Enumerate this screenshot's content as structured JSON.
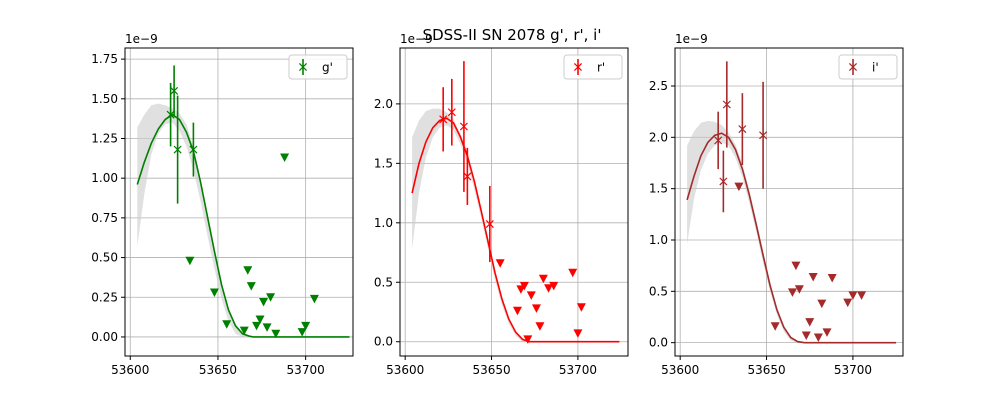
{
  "title": "SDSS-II SN 2078  g', r', i'",
  "chart_data": [
    {
      "type": "scatter",
      "band": "g'",
      "color": "#008000",
      "offset_label": "1e−9",
      "xlim": [
        53597,
        53727
      ],
      "ylim": [
        -0.12,
        1.82
      ],
      "xticks": [
        53600,
        53650,
        53700
      ],
      "xtick_labels": [
        "53600",
        "53650",
        "53700"
      ],
      "yticks": [
        0,
        0.25,
        0.5,
        0.75,
        1.0,
        1.25,
        1.5,
        1.75
      ],
      "ytick_labels": [
        "0.00",
        "0.25",
        "0.50",
        "0.75",
        "1.00",
        "1.25",
        "1.50",
        "1.75"
      ],
      "grid": true,
      "legend": {
        "label": "g'",
        "position": "top-right"
      },
      "detections": [
        {
          "x": 53623,
          "y": 1.4,
          "yerr": 0.2
        },
        {
          "x": 53625,
          "y": 1.55,
          "yerr": 0.16
        },
        {
          "x": 53627,
          "y": 1.18,
          "yerr": 0.34
        },
        {
          "x": 53636,
          "y": 1.18,
          "yerr": 0.17
        }
      ],
      "upper_limits": [
        {
          "x": 53634,
          "y": 0.48
        },
        {
          "x": 53648,
          "y": 0.28
        },
        {
          "x": 53655,
          "y": 0.08
        },
        {
          "x": 53665,
          "y": 0.04
        },
        {
          "x": 53667,
          "y": 0.42
        },
        {
          "x": 53669,
          "y": 0.32
        },
        {
          "x": 53672,
          "y": 0.07
        },
        {
          "x": 53674,
          "y": 0.11
        },
        {
          "x": 53676,
          "y": 0.22
        },
        {
          "x": 53678,
          "y": 0.06
        },
        {
          "x": 53680,
          "y": 0.25
        },
        {
          "x": 53683,
          "y": 0.02
        },
        {
          "x": 53688,
          "y": 1.13
        },
        {
          "x": 53698,
          "y": 0.03
        },
        {
          "x": 53700,
          "y": 0.07
        },
        {
          "x": 53705,
          "y": 0.24
        }
      ],
      "model": {
        "x": [
          53604,
          53608,
          53612,
          53616,
          53620,
          53624,
          53628,
          53632,
          53636,
          53640,
          53644,
          53648,
          53652,
          53656,
          53660,
          53664,
          53668,
          53670,
          53680,
          53700,
          53725
        ],
        "y": [
          0.96,
          1.1,
          1.22,
          1.31,
          1.37,
          1.4,
          1.37,
          1.29,
          1.17,
          0.98,
          0.76,
          0.54,
          0.33,
          0.17,
          0.07,
          0.02,
          0.005,
          0.0,
          0.0,
          0.0,
          0.0
        ]
      },
      "band_region": {
        "x": [
          53604,
          53608,
          53612,
          53616,
          53620,
          53624,
          53628,
          53632,
          53636,
          53640,
          53644,
          53648,
          53652,
          53656,
          53660,
          53664,
          53668
        ],
        "upper": [
          1.32,
          1.4,
          1.46,
          1.47,
          1.46,
          1.44,
          1.41,
          1.34,
          1.2,
          1.0,
          0.77,
          0.55,
          0.34,
          0.18,
          0.08,
          0.03,
          0.01
        ],
        "lower": [
          0.57,
          0.9,
          1.15,
          1.28,
          1.34,
          1.35,
          1.3,
          1.2,
          1.05,
          0.86,
          0.64,
          0.43,
          0.24,
          0.1,
          0.02,
          0.0,
          0.0
        ]
      }
    },
    {
      "type": "scatter",
      "band": "r'",
      "color": "#ff0000",
      "offset_label": "1e−9",
      "xlim": [
        53597,
        53729
      ],
      "ylim": [
        -0.12,
        2.47
      ],
      "xticks": [
        53600,
        53650,
        53700
      ],
      "xtick_labels": [
        "53600",
        "53650",
        "53700"
      ],
      "yticks": [
        0,
        0.5,
        1.0,
        1.5,
        2.0
      ],
      "ytick_labels": [
        "0.0",
        "0.5",
        "1.0",
        "1.5",
        "2.0"
      ],
      "grid": true,
      "legend": {
        "label": "r'",
        "position": "top-right"
      },
      "detections": [
        {
          "x": 53622,
          "y": 1.87,
          "yerr": 0.27
        },
        {
          "x": 53627,
          "y": 1.93,
          "yerr": 0.28
        },
        {
          "x": 53634,
          "y": 1.81,
          "yerr": 0.55
        },
        {
          "x": 53636,
          "y": 1.39,
          "yerr": 0.24
        },
        {
          "x": 53649,
          "y": 0.99,
          "yerr": 0.32
        }
      ],
      "upper_limits": [
        {
          "x": 53655,
          "y": 0.66
        },
        {
          "x": 53665,
          "y": 0.26
        },
        {
          "x": 53667,
          "y": 0.44
        },
        {
          "x": 53669,
          "y": 0.47
        },
        {
          "x": 53671,
          "y": 0.02
        },
        {
          "x": 53673,
          "y": 0.39
        },
        {
          "x": 53676,
          "y": 0.28
        },
        {
          "x": 53678,
          "y": 0.13
        },
        {
          "x": 53680,
          "y": 0.53
        },
        {
          "x": 53683,
          "y": 0.45
        },
        {
          "x": 53686,
          "y": 0.47
        },
        {
          "x": 53697,
          "y": 0.58
        },
        {
          "x": 53700,
          "y": 0.07
        },
        {
          "x": 53702,
          "y": 0.29
        }
      ],
      "model": {
        "x": [
          53604,
          53608,
          53612,
          53616,
          53620,
          53624,
          53628,
          53632,
          53636,
          53640,
          53644,
          53648,
          53652,
          53656,
          53660,
          53664,
          53668,
          53672,
          53676,
          53680,
          53700,
          53724
        ],
        "y": [
          1.25,
          1.5,
          1.68,
          1.8,
          1.86,
          1.88,
          1.84,
          1.72,
          1.56,
          1.35,
          1.1,
          0.84,
          0.58,
          0.36,
          0.19,
          0.08,
          0.02,
          0.0,
          0.0,
          0.0,
          0.0,
          0.0
        ]
      },
      "band_region": {
        "x": [
          53604,
          53608,
          53612,
          53616,
          53620,
          53624,
          53628,
          53632,
          53636,
          53640,
          53644,
          53648,
          53652,
          53656,
          53660,
          53664,
          53668,
          53672
        ],
        "upper": [
          1.72,
          1.86,
          1.94,
          1.96,
          1.96,
          1.93,
          1.87,
          1.75,
          1.6,
          1.38,
          1.13,
          0.87,
          0.61,
          0.38,
          0.2,
          0.08,
          0.02,
          0.0
        ],
        "lower": [
          0.78,
          1.25,
          1.55,
          1.72,
          1.8,
          1.82,
          1.78,
          1.66,
          1.5,
          1.28,
          1.04,
          0.78,
          0.52,
          0.31,
          0.15,
          0.05,
          0.0,
          0.0
        ]
      }
    },
    {
      "type": "scatter",
      "band": "i'",
      "color": "#a52a2a",
      "offset_label": "1e−9",
      "xlim": [
        53597,
        53729
      ],
      "ylim": [
        -0.13,
        2.87
      ],
      "xticks": [
        53600,
        53650,
        53700
      ],
      "xtick_labels": [
        "53600",
        "53650",
        "53700"
      ],
      "yticks": [
        0,
        0.5,
        1.0,
        1.5,
        2.0,
        2.5
      ],
      "ytick_labels": [
        "0.0",
        "0.5",
        "1.0",
        "1.5",
        "2.0",
        "2.5"
      ],
      "grid": true,
      "legend": {
        "label": "i'",
        "position": "top-right"
      },
      "detections": [
        {
          "x": 53622,
          "y": 1.97,
          "yerr": 0.28
        },
        {
          "x": 53625,
          "y": 1.57,
          "yerr": 0.3
        },
        {
          "x": 53627,
          "y": 2.32,
          "yerr": 0.42
        },
        {
          "x": 53636,
          "y": 2.08,
          "yerr": 0.35
        },
        {
          "x": 53648,
          "y": 2.02,
          "yerr": 0.52
        }
      ],
      "upper_limits": [
        {
          "x": 53634,
          "y": 1.52
        },
        {
          "x": 53655,
          "y": 0.16
        },
        {
          "x": 53665,
          "y": 0.49
        },
        {
          "x": 53667,
          "y": 0.75
        },
        {
          "x": 53669,
          "y": 0.52
        },
        {
          "x": 53673,
          "y": 0.07
        },
        {
          "x": 53675,
          "y": 0.2
        },
        {
          "x": 53677,
          "y": 0.64
        },
        {
          "x": 53680,
          "y": 0.05
        },
        {
          "x": 53682,
          "y": 0.38
        },
        {
          "x": 53685,
          "y": 0.1
        },
        {
          "x": 53688,
          "y": 0.63
        },
        {
          "x": 53697,
          "y": 0.39
        },
        {
          "x": 53700,
          "y": 0.46
        },
        {
          "x": 53705,
          "y": 0.46
        }
      ],
      "model": {
        "x": [
          53604,
          53608,
          53612,
          53616,
          53620,
          53624,
          53628,
          53632,
          53636,
          53640,
          53644,
          53648,
          53652,
          53656,
          53660,
          53664,
          53668,
          53672,
          53680,
          53700,
          53725
        ],
        "y": [
          1.39,
          1.62,
          1.82,
          1.95,
          2.02,
          2.04,
          2.0,
          1.88,
          1.69,
          1.44,
          1.15,
          0.85,
          0.56,
          0.32,
          0.15,
          0.05,
          0.01,
          0.0,
          0.0,
          0.0,
          0.0
        ]
      },
      "band_region": {
        "x": [
          53604,
          53608,
          53612,
          53616,
          53620,
          53624,
          53628,
          53632,
          53636,
          53640,
          53644,
          53648,
          53652,
          53656,
          53660,
          53664,
          53668,
          53672
        ],
        "upper": [
          1.92,
          2.06,
          2.14,
          2.16,
          2.15,
          2.12,
          2.05,
          1.93,
          1.74,
          1.49,
          1.2,
          0.9,
          0.6,
          0.35,
          0.17,
          0.06,
          0.01,
          0.0
        ],
        "lower": [
          0.96,
          1.4,
          1.68,
          1.84,
          1.92,
          1.95,
          1.92,
          1.8,
          1.61,
          1.36,
          1.08,
          0.78,
          0.5,
          0.27,
          0.11,
          0.02,
          0.0,
          0.0
        ]
      }
    }
  ]
}
